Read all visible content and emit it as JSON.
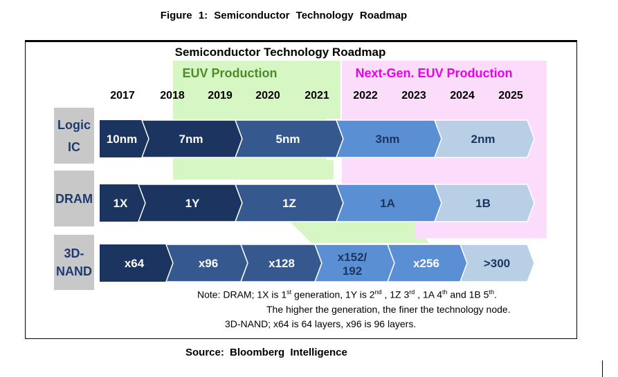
{
  "figure_title": "Figure 1:  Semiconductor Technology Roadmap",
  "chart_title": "Semiconductor Technology Roadmap",
  "phases": [
    {
      "label": "EUV Production",
      "color": "#d6f7c4",
      "text_color": "#4d8a2a"
    },
    {
      "label": "Next-Gen. EUV Production",
      "color": "#fbdcfb",
      "text_color": "#ee00ee"
    }
  ],
  "years": [
    "2017",
    "2018",
    "2019",
    "2020",
    "2021",
    "2022",
    "2023",
    "2024",
    "2025"
  ],
  "rows": [
    {
      "name": "Logic IC",
      "name_lines": [
        "Logic",
        "IC"
      ],
      "segments": [
        "10nm",
        "7nm",
        "5nm",
        "3nm",
        "2nm"
      ]
    },
    {
      "name": "DRAM",
      "name_lines": [
        "DRAM"
      ],
      "segments": [
        "1X",
        "1Y",
        "1Z",
        "1A",
        "1B"
      ]
    },
    {
      "name": "3D-NAND",
      "name_lines": [
        "3D-",
        "NAND"
      ],
      "segments": [
        "x64",
        "x96",
        "x128",
        "x152/192",
        "x256",
        ">300"
      ]
    }
  ],
  "colors": {
    "dark_navy": "#1b3560",
    "mid_blue": "#35598f",
    "light_blue": "#5b8fd3",
    "pale_blue": "#b8cfe6",
    "row_label_bg": "#c8c8c8",
    "row_label_text": "#1f3a6e"
  },
  "note": {
    "line1_prefix": "Note: DRAM; 1X is 1",
    "sup1": "st",
    "line1_b": " generation, 1Y is 2",
    "sup2": "nd",
    "line1_c": " , 1Z 3",
    "sup3": "rd",
    "line1_d": " , 1A 4",
    "sup4": "th",
    "line1_e": " and 1B 5",
    "sup5": "th",
    "line1_f": ".",
    "line2": "The higher the generation, the finer the technology node.",
    "line3": "3D-NAND; x64 is 64 layers, x96 is 96 layers."
  },
  "source": "Source:  Bloomberg  Intelligence"
}
